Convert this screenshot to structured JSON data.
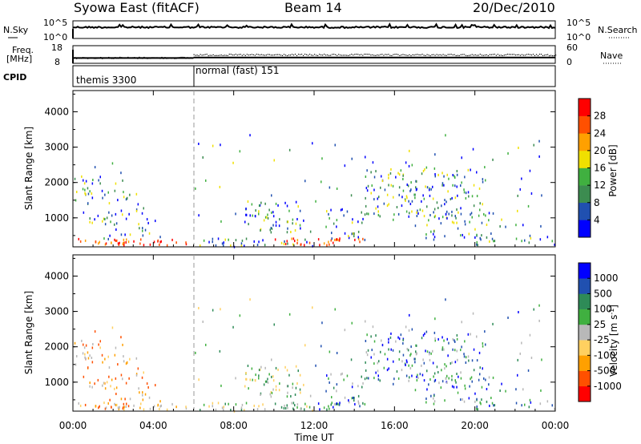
{
  "header": {
    "title": "Syowa East (fitACF)",
    "beam": "Beam 14",
    "date": "20/Dec/2010"
  },
  "colors": {
    "power_scale": [
      "#0000ff",
      "#2050b0",
      "#3c8c50",
      "#40b040",
      "#f0e000",
      "#ffa000",
      "#ff5000",
      "#ff0000"
    ],
    "velocity_scale": [
      "#ff0000",
      "#ff5000",
      "#ffa000",
      "#ffd060",
      "#b8b8b8",
      "#40b040",
      "#2e8b57",
      "#2050b0",
      "#0000ff"
    ]
  },
  "chart_data": [
    {
      "name": "noise",
      "type": "line",
      "left_label": "N.Sky",
      "left_ticks": [
        "10^5",
        "10^0"
      ],
      "right_label": "N.Search",
      "right_ticks": [
        "10^5",
        "10^0"
      ],
      "xlim": [
        0,
        24
      ]
    },
    {
      "name": "frequency-nave",
      "type": "scatter",
      "left_label": "Freq.",
      "left_unit": "[MHz]",
      "left_ticks": [
        "18",
        "8"
      ],
      "right_label": "Nave",
      "right_ticks": [
        "60",
        "0"
      ],
      "xlim": [
        0,
        24
      ],
      "freq_series": [
        {
          "x": [
            0,
            6
          ],
          "y": 11.0
        },
        {
          "x": [
            6,
            24
          ],
          "y": 11.3
        }
      ],
      "nave_series": [
        {
          "x": [
            0,
            6
          ],
          "y": 20
        },
        {
          "x": [
            6,
            24
          ],
          "y": 30
        }
      ]
    },
    {
      "name": "cpid",
      "type": "table",
      "label": "CPID",
      "segments": [
        {
          "start": 0,
          "end": 6,
          "text": "themis 3300"
        },
        {
          "start": 6,
          "end": 24,
          "text": "normal (fast) 151"
        }
      ]
    },
    {
      "name": "power",
      "type": "heatmap",
      "ylabel": "Slant Range [km]",
      "yticks": [
        "1000",
        "2000",
        "3000",
        "4000"
      ],
      "ylim": [
        180,
        4600
      ],
      "xlim": [
        0,
        24
      ],
      "colorbar_label": "Power [dB]",
      "colorbar_ticks": [
        "28",
        "24",
        "20",
        "16",
        "12",
        "8",
        "4"
      ],
      "clim": [
        0,
        32
      ]
    },
    {
      "name": "velocity",
      "type": "heatmap",
      "ylabel": "Slant Range [km]",
      "yticks": [
        "1000",
        "2000",
        "3000",
        "4000"
      ],
      "ylim": [
        180,
        4600
      ],
      "xlim": [
        0,
        24
      ],
      "xlabel": "Time UT",
      "xticks": [
        "00:00",
        "04:00",
        "08:00",
        "12:00",
        "16:00",
        "20:00",
        "00:00"
      ],
      "colorbar_label": "Velocity [m s",
      "colorbar_label_sup": "-1",
      "colorbar_label_end": "]",
      "colorbar_ticks": [
        "1000",
        "500",
        "100",
        "25",
        "-25",
        "-100",
        "-500",
        "-1000"
      ]
    }
  ]
}
